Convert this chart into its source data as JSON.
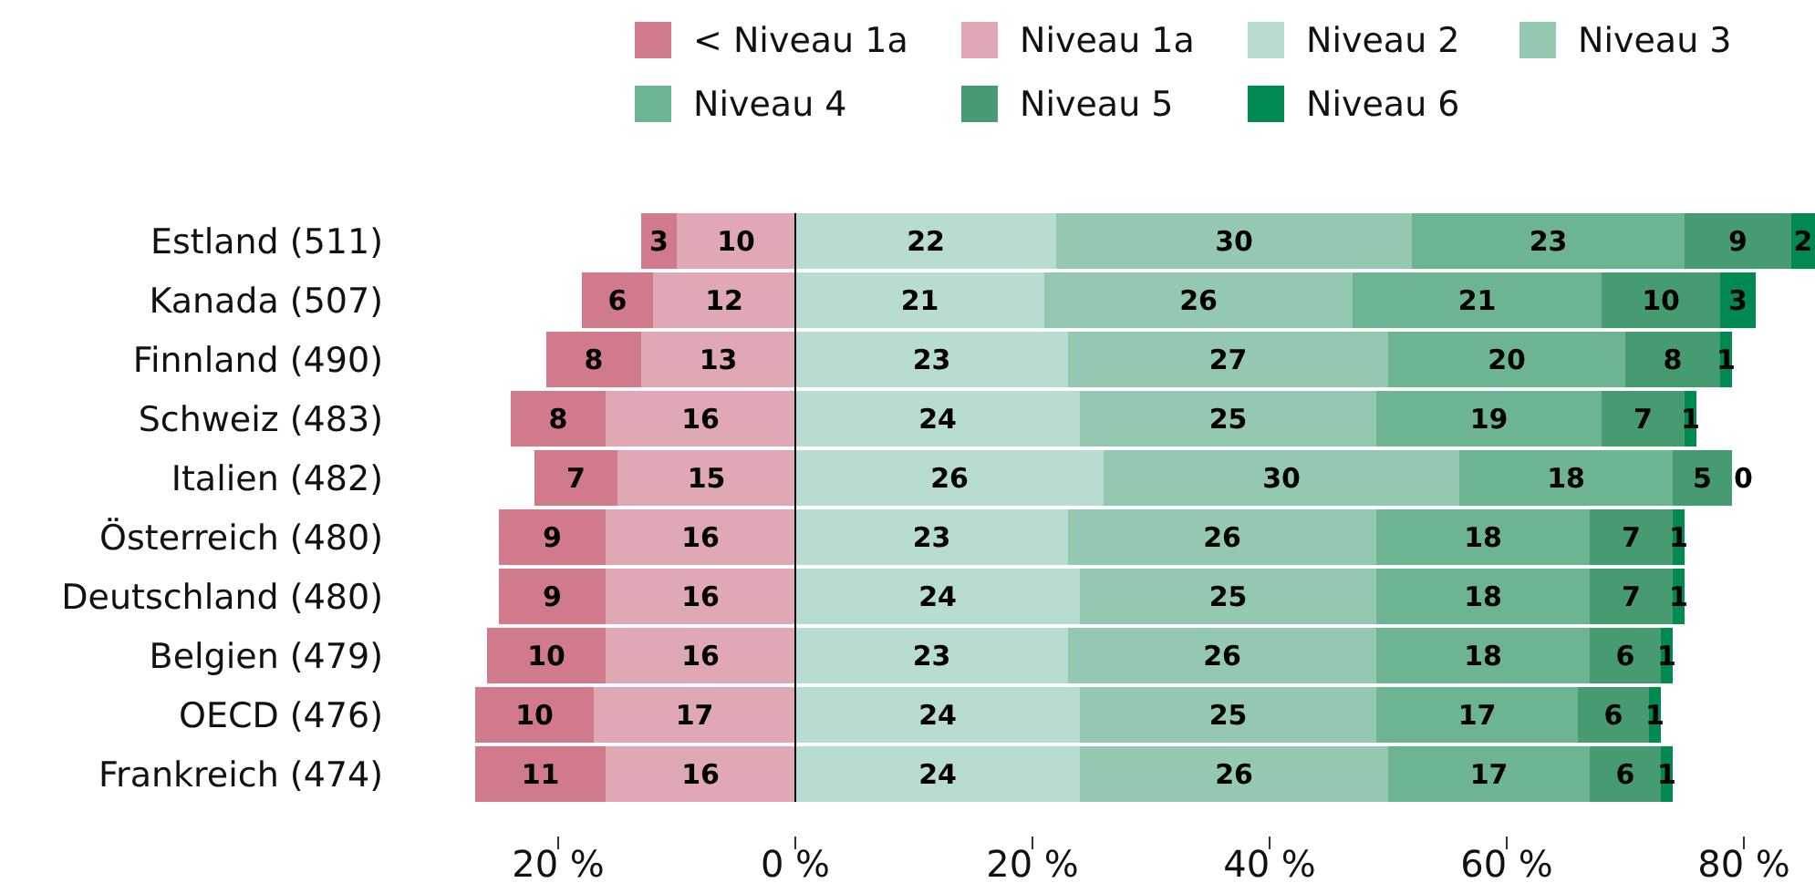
{
  "chart_data": {
    "type": "bar",
    "orientation": "horizontal",
    "data_labels": true,
    "categories": [
      "Estland (511)",
      "Kanada (507)",
      "Finnland (490)",
      "Schweiz (483)",
      "Italien (482)",
      "Österreich (480)",
      "Deutschland (480)",
      "Belgien (479)",
      "OECD (476)",
      "Frankreich (474)"
    ],
    "series": [
      {
        "name": "< Niveau 1a",
        "color": "#d07a8b",
        "values": [
          3,
          6,
          8,
          8,
          7,
          9,
          9,
          10,
          10,
          11
        ],
        "base": [
          -13,
          -18,
          -21,
          -24,
          -22,
          -25,
          -25,
          -26,
          -27,
          -27
        ]
      },
      {
        "name": "Niveau 1a",
        "color": "#e0a7b4",
        "values": [
          10,
          12,
          13,
          16,
          15,
          16,
          16,
          16,
          17,
          16
        ],
        "base": [
          -10,
          -12,
          -13,
          -16,
          -15,
          -16,
          -16,
          -16,
          -17,
          -16
        ]
      },
      {
        "name": "Niveau 2",
        "color": "#b8dcd1",
        "values": [
          22,
          21,
          23,
          24,
          26,
          23,
          24,
          23,
          24,
          24
        ],
        "base": [
          0,
          0,
          0,
          0,
          0,
          0,
          0,
          0,
          0,
          0
        ]
      },
      {
        "name": "Niveau 3",
        "color": "#94c8b0",
        "values": [
          30,
          26,
          27,
          25,
          30,
          26,
          25,
          26,
          25,
          26
        ],
        "base": [
          22,
          21,
          23,
          24,
          26,
          23,
          24,
          23,
          24,
          24
        ]
      },
      {
        "name": "Niveau 4",
        "color": "#6db492",
        "values": [
          23,
          21,
          20,
          19,
          18,
          18,
          18,
          18,
          17,
          17
        ],
        "base": [
          52,
          47,
          50,
          49,
          56,
          49,
          49,
          49,
          49,
          50
        ]
      },
      {
        "name": "Niveau 5",
        "color": "#469c70",
        "values": [
          9,
          10,
          8,
          7,
          5,
          7,
          7,
          6,
          6,
          6
        ],
        "base": [
          75,
          68,
          70,
          68,
          74,
          67,
          67,
          67,
          66,
          67
        ]
      },
      {
        "name": "Niveau 6",
        "color": "#008a52",
        "values": [
          2,
          3,
          1,
          1,
          null,
          1,
          1,
          1,
          1,
          1
        ],
        "base": [
          84,
          78,
          78,
          75,
          null,
          74,
          74,
          73,
          72,
          73
        ]
      }
    ],
    "xlim": [
      -27,
      86
    ],
    "xticks": [
      {
        "value": -20,
        "label": "20 %"
      },
      {
        "value": 0,
        "label": "0 %"
      },
      {
        "value": 20,
        "label": "20 %"
      },
      {
        "value": 40,
        "label": "40 %"
      },
      {
        "value": 60,
        "label": "60 %"
      },
      {
        "value": 80,
        "label": "80 %"
      }
    ],
    "annotations": [
      {
        "text": "0",
        "x": 79,
        "y": "Italien (482)"
      }
    ],
    "legend": "top"
  }
}
